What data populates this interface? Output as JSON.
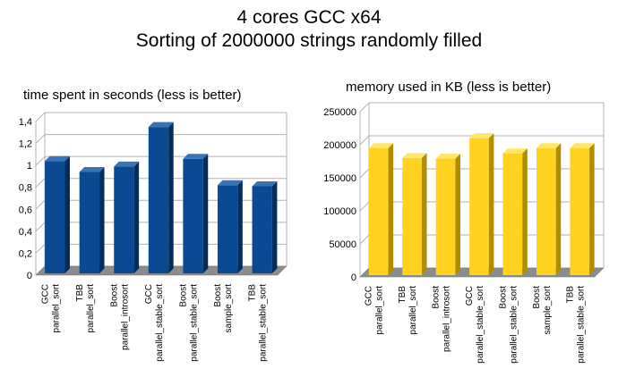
{
  "title_line1": "4 cores GCC  x64",
  "title_line2": "Sorting of 2000000 strings randomly filled",
  "colors": {
    "time_bar": "#0a4a92",
    "time_bar_side": "#052d5c",
    "time_bar_top": "#3a73b5",
    "memory_bar": "#ffd21f",
    "memory_bar_side": "#b08c00",
    "memory_bar_top": "#ffe56a",
    "grid": "#b3b3b3",
    "floor": "#8c8c8c"
  },
  "chart_data": [
    {
      "type": "bar",
      "title": "time spent in seconds (less is better)",
      "categories": [
        [
          "GCC",
          "parallel_sort"
        ],
        [
          "TBB",
          "parallel_sort"
        ],
        [
          "Boost",
          "parallel_introsort"
        ],
        [
          "GCC",
          "parallel_stable_sort"
        ],
        [
          "Boost",
          "parallel_stable_sort"
        ],
        [
          "Boost",
          "sample_sort"
        ],
        [
          "TBB",
          "parallel_stable_sort"
        ]
      ],
      "values": [
        1.04,
        0.94,
        0.99,
        1.35,
        1.06,
        0.82,
        0.81
      ],
      "ylim": [
        0,
        1.4
      ],
      "yticks": [
        "0",
        "0,2",
        "0,4",
        "0,6",
        "0,8",
        "1",
        "1,2",
        "1,4"
      ],
      "grid": true,
      "style": "3d"
    },
    {
      "type": "bar",
      "title": "memory used in KB (less is better)",
      "categories": [
        [
          "GCC",
          "parallel_sort"
        ],
        [
          "TBB",
          "parallel_sort"
        ],
        [
          "Boost",
          "parallel_introsort"
        ],
        [
          "GCC",
          "parallel_stable_sort"
        ],
        [
          "Boost",
          "parallel_stable_sort"
        ],
        [
          "Boost",
          "sample_sort"
        ],
        [
          "TBB",
          "parallel_stable_sort"
        ]
      ],
      "values": [
        195000,
        180000,
        179000,
        210000,
        187000,
        195000,
        195000
      ],
      "ylim": [
        0,
        250000
      ],
      "yticks": [
        "0",
        "50000",
        "100000",
        "150000",
        "200000",
        "250000"
      ],
      "grid": true,
      "style": "3d"
    }
  ]
}
